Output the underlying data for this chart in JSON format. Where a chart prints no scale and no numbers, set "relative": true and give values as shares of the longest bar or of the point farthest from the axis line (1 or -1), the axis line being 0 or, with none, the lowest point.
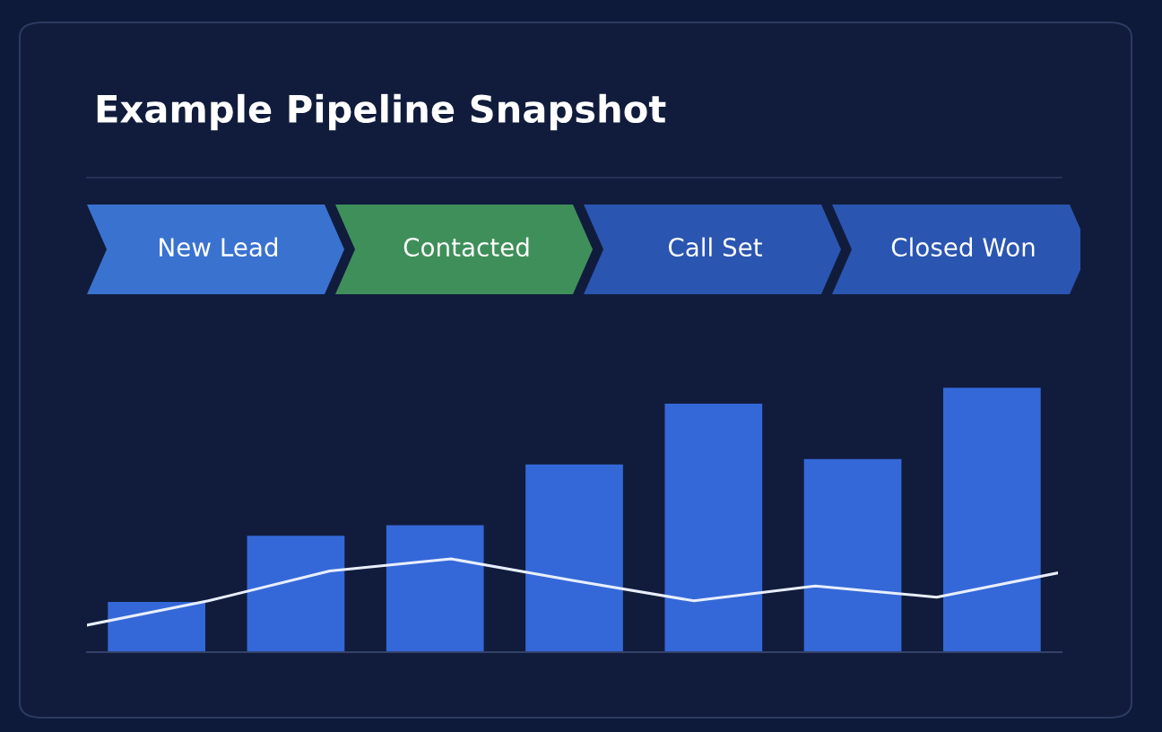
{
  "chart_data": [
    {
      "type": "other",
      "title": "Example Pipeline Snapshot",
      "categories": [
        "New Lead",
        "Contacted",
        "Call Set",
        "Closed Won"
      ],
      "colors": [
        "#3a72d0",
        "#3f8f5a",
        "#2a55b0",
        "#2a55b0"
      ]
    },
    {
      "type": "bar",
      "relative": true,
      "categories": [
        null,
        null,
        null,
        null,
        null,
        null,
        null
      ],
      "series": [
        {
          "color": "#3468d8",
          "values": [
            0.19,
            0.44,
            0.48,
            0.71,
            0.94,
            0.73,
            1
          ]
        }
      ]
    },
    {
      "type": "line",
      "relative": true,
      "categories": [
        null,
        null,
        null,
        null,
        null,
        null,
        null,
        null,
        null
      ],
      "series": [
        {
          "color": "#e8eefc",
          "values": [
            0.29,
            0.55,
            0.87,
            1,
            0.77,
            0.55,
            0.71,
            0.59,
            0.85
          ]
        }
      ]
    }
  ]
}
